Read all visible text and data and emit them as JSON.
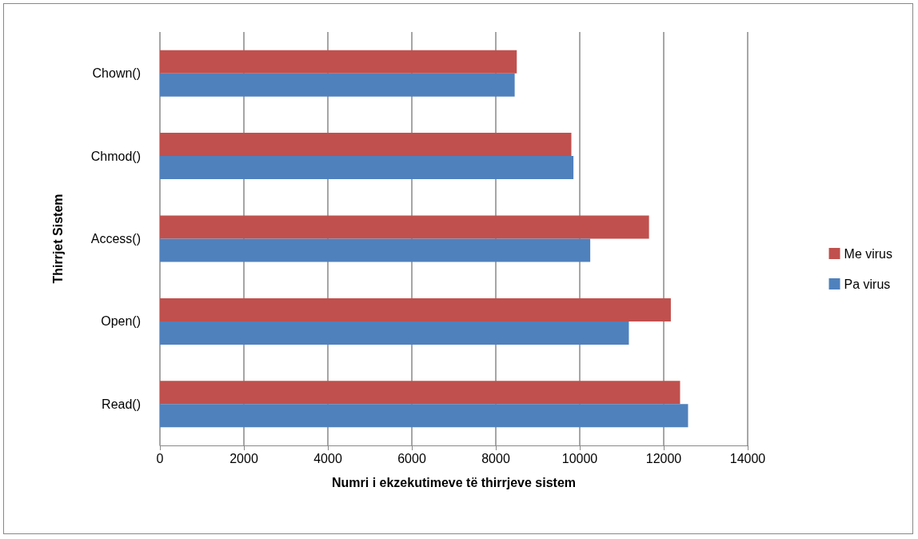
{
  "chart_data": {
    "type": "bar",
    "orientation": "horizontal",
    "xlabel": "Numri i ekzekutimeve të thirrjeve sistem",
    "ylabel": "Thirrjet Sistem",
    "categories": [
      "Chown()",
      "Chmod()",
      "Access()",
      "Open()",
      "Read()"
    ],
    "series": [
      {
        "name": "Me virus",
        "color": "#c0504d",
        "values": [
          8500,
          9800,
          11650,
          12170,
          12390
        ]
      },
      {
        "name": "Pa virus",
        "color": "#4f81bd",
        "values": [
          8450,
          9850,
          10250,
          11170,
          12580
        ]
      }
    ],
    "xlim": [
      0,
      14000
    ],
    "xticks": [
      0,
      2000,
      4000,
      6000,
      8000,
      10000,
      12000,
      14000
    ],
    "grid": "x",
    "legend": "right"
  }
}
